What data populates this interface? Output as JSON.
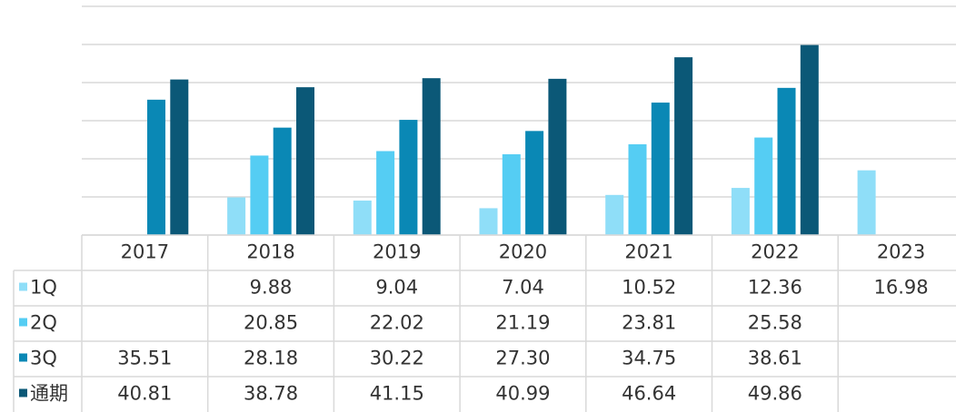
{
  "chart_data": {
    "type": "bar",
    "categories": [
      "2017",
      "2018",
      "2019",
      "2020",
      "2021",
      "2022",
      "2023"
    ],
    "series": [
      {
        "name": "1Q",
        "color": "#8fdef8",
        "values": [
          null,
          9.88,
          9.04,
          7.04,
          10.52,
          12.36,
          16.98
        ],
        "value_labels": [
          null,
          "9.88",
          "9.04",
          "7.04",
          "10.52",
          "12.36",
          "16.98"
        ]
      },
      {
        "name": "2Q",
        "color": "#55cdf3",
        "values": [
          null,
          20.85,
          22.02,
          21.19,
          23.81,
          25.58,
          null
        ],
        "value_labels": [
          null,
          "20.85",
          "22.02",
          "21.19",
          "23.81",
          "25.58",
          null
        ]
      },
      {
        "name": "3Q",
        "color": "#0a88b5",
        "values": [
          35.51,
          28.18,
          30.22,
          27.3,
          34.75,
          38.61,
          null
        ],
        "value_labels": [
          "35.51",
          "28.18",
          "30.22",
          "27.30",
          "34.75",
          "38.61",
          null
        ]
      },
      {
        "name": "通期",
        "color": "#0b5877",
        "values": [
          40.81,
          38.78,
          41.15,
          40.99,
          46.64,
          49.86,
          null
        ],
        "value_labels": [
          "40.81",
          "38.78",
          "41.15",
          "40.99",
          "46.64",
          "49.86",
          null
        ]
      }
    ],
    "ylim": [
      0,
      60
    ],
    "yticks": [
      0,
      10,
      20,
      30,
      40,
      50,
      60
    ],
    "grid": true
  }
}
